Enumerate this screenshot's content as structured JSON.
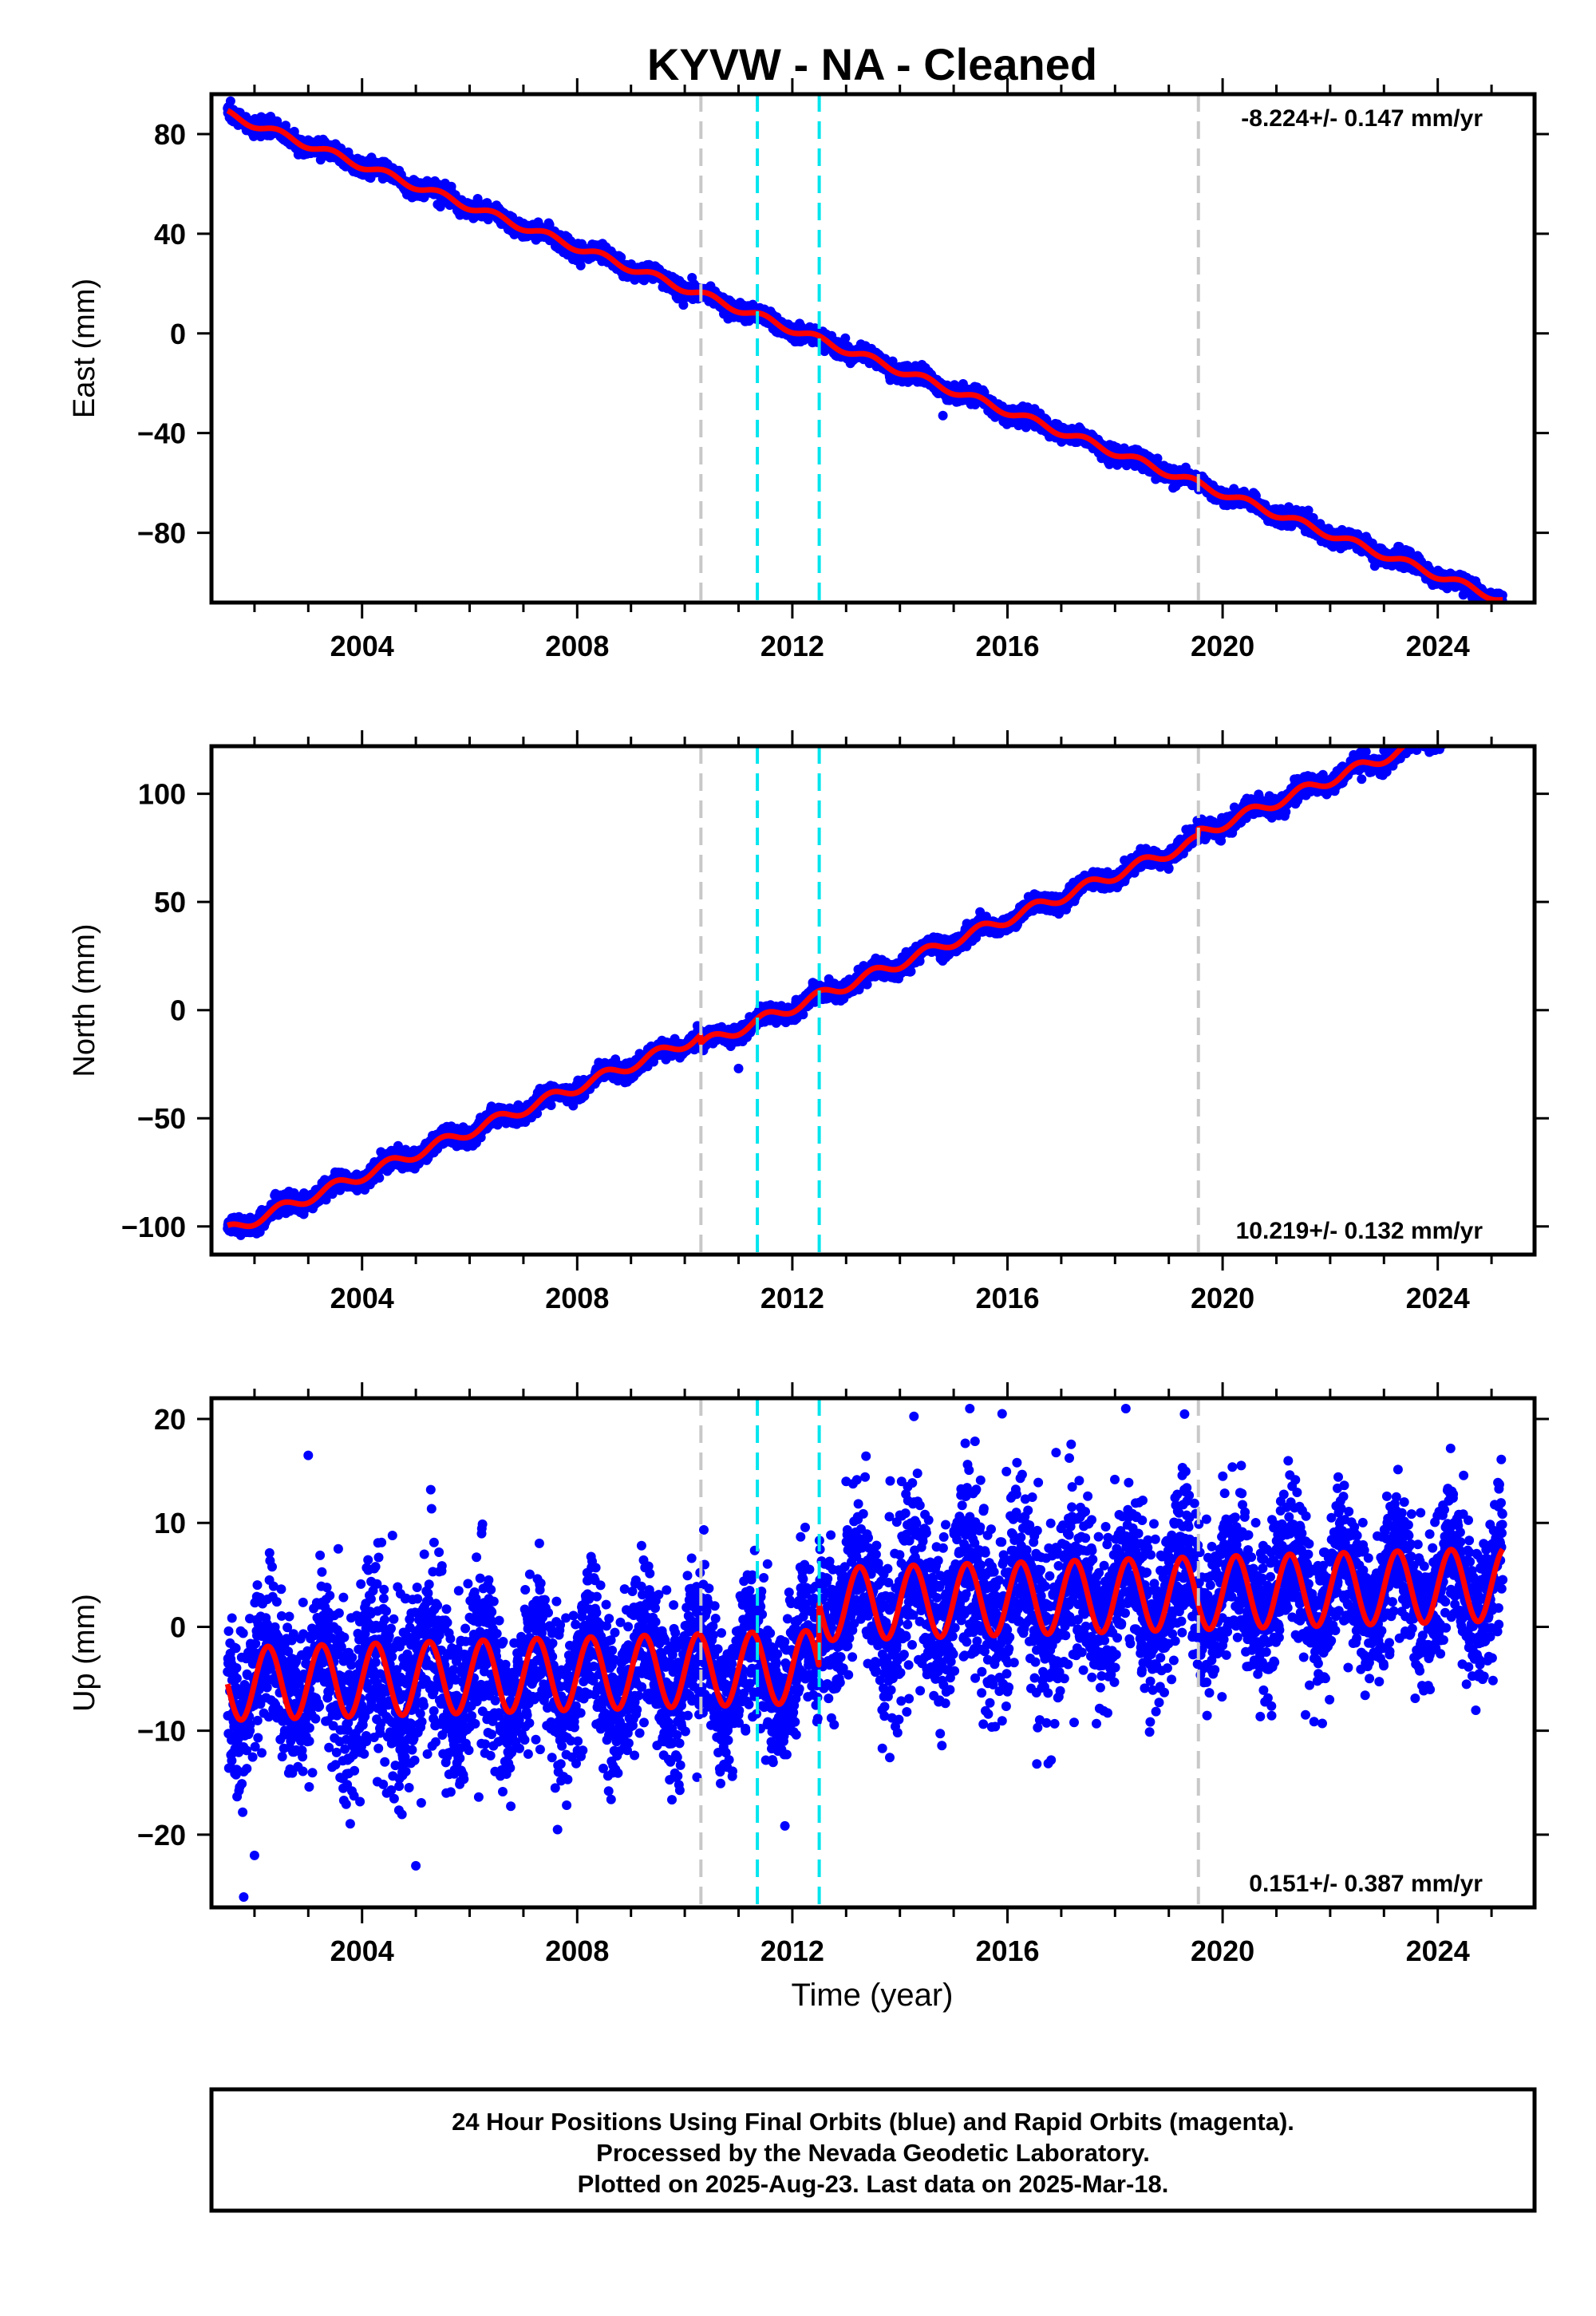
{
  "page": {
    "title": "KYVW  - NA - Cleaned"
  },
  "chart_data": [
    {
      "type": "scatter",
      "panel": "east",
      "ylabel": "East (mm)",
      "xlim": [
        2001.2,
        2025.8
      ],
      "ylim": [
        -108,
        96
      ],
      "yticks": [
        80,
        40,
        0,
        -40,
        -80
      ],
      "xticks": [
        2004,
        2008,
        2012,
        2016,
        2020,
        2024
      ],
      "rate_text": "-8.224+/- 0.147 mm/yr",
      "rate_position": "top-right",
      "model": {
        "t0": 2001.5,
        "y0": 88,
        "slope": -8.224,
        "annual_amp": 1.5,
        "phase": 0.2,
        "steps": []
      },
      "noise_mm": 1.6,
      "outliers": [
        [
          2014.8,
          -33
        ]
      ],
      "series": [
        {
          "name": "data",
          "color": "#0000ff",
          "role": "daily positions (blue dots)"
        },
        {
          "name": "model",
          "color": "#ff0000",
          "role": "fitted model (red line)"
        }
      ]
    },
    {
      "type": "scatter",
      "panel": "north",
      "ylabel": "North (mm)",
      "xlim": [
        2001.2,
        2025.8
      ],
      "ylim": [
        -113,
        122
      ],
      "yticks": [
        100,
        50,
        0,
        -50,
        -100
      ],
      "xticks": [
        2004,
        2008,
        2012,
        2016,
        2020,
        2024
      ],
      "rate_text": "10.219+/- 0.132 mm/yr",
      "rate_position": "bottom-right",
      "model": {
        "t0": 2001.5,
        "y0": -102,
        "slope": 10.219,
        "annual_amp": 2.5,
        "phase": 0.25,
        "steps": [
          [
            2010.3,
            -4
          ],
          [
            2019.55,
            3
          ]
        ]
      },
      "noise_mm": 2.0,
      "outliers": [
        [
          2011.0,
          -27
        ]
      ],
      "series": [
        {
          "name": "data",
          "color": "#0000ff",
          "role": "daily positions (blue dots)"
        },
        {
          "name": "model",
          "color": "#ff0000",
          "role": "fitted model (red line)"
        }
      ]
    },
    {
      "type": "scatter",
      "panel": "up",
      "ylabel": "Up (mm)",
      "xlabel": "Time (year)",
      "xlim": [
        2001.2,
        2025.8
      ],
      "ylim": [
        -27,
        22
      ],
      "yticks": [
        20,
        10,
        0,
        -10,
        -20
      ],
      "xticks": [
        2004,
        2008,
        2012,
        2016,
        2020,
        2024
      ],
      "rate_text": "0.151+/- 0.387 mm/yr",
      "rate_position": "bottom-right",
      "model": {
        "t0": 2001.5,
        "y0": -5.5,
        "slope": 0.151,
        "annual_amp": 3.5,
        "phase": 0.0,
        "steps": [
          [
            2012.5,
            6.0
          ]
        ]
      },
      "noise_mm": 3.6,
      "outliers": [
        [
          2001.8,
          -26
        ],
        [
          2002.0,
          -22
        ],
        [
          2015.3,
          21
        ],
        [
          2018.2,
          21
        ],
        [
          2015.9,
          20.5
        ],
        [
          2005.0,
          -23
        ],
        [
          2013.0,
          14
        ],
        [
          2003.0,
          16.5
        ]
      ],
      "series": [
        {
          "name": "data",
          "color": "#0000ff",
          "role": "daily positions (blue dots)"
        },
        {
          "name": "model",
          "color": "#ff0000",
          "role": "fitted model (red line)"
        }
      ]
    }
  ],
  "events": [
    {
      "year": 2010.3,
      "color": "#c8c8c8"
    },
    {
      "year": 2011.35,
      "color": "#00e5ee"
    },
    {
      "year": 2012.5,
      "color": "#00e5ee"
    },
    {
      "year": 2019.55,
      "color": "#c8c8c8"
    }
  ],
  "footer": {
    "line1": "24 Hour Positions Using Final Orbits (blue) and Rapid Orbits (magenta).",
    "line2": "Processed by the Nevada Geodetic Laboratory.",
    "line3": "Plotted on 2025-Aug-23. Last data on 2025-Mar-18."
  },
  "data_range": {
    "start": 2001.5,
    "end": 2025.21
  }
}
